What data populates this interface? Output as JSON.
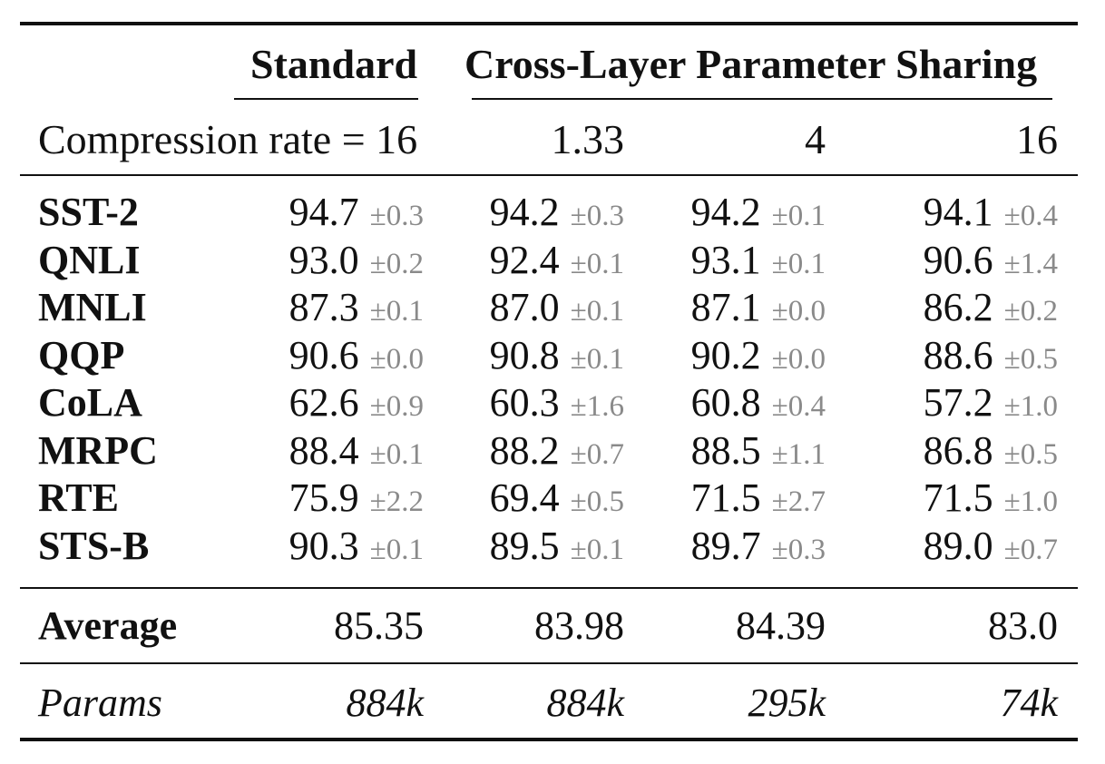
{
  "header": {
    "standard": "Standard",
    "shared": "Cross-Layer Parameter Sharing"
  },
  "compression": {
    "label": "Compression rate = 16",
    "rates": [
      "1.33",
      "4",
      "16"
    ]
  },
  "rows": [
    {
      "task": "SST-2",
      "cells": [
        [
          "94.7",
          "±0.3"
        ],
        [
          "94.2",
          "±0.3"
        ],
        [
          "94.2",
          "±0.1"
        ],
        [
          "94.1",
          "±0.4"
        ]
      ]
    },
    {
      "task": "QNLI",
      "cells": [
        [
          "93.0",
          "±0.2"
        ],
        [
          "92.4",
          "±0.1"
        ],
        [
          "93.1",
          "±0.1"
        ],
        [
          "90.6",
          "±1.4"
        ]
      ]
    },
    {
      "task": "MNLI",
      "cells": [
        [
          "87.3",
          "±0.1"
        ],
        [
          "87.0",
          "±0.1"
        ],
        [
          "87.1",
          "±0.0"
        ],
        [
          "86.2",
          "±0.2"
        ]
      ]
    },
    {
      "task": "QQP",
      "cells": [
        [
          "90.6",
          "±0.0"
        ],
        [
          "90.8",
          "±0.1"
        ],
        [
          "90.2",
          "±0.0"
        ],
        [
          "88.6",
          "±0.5"
        ]
      ]
    },
    {
      "task": "CoLA",
      "cells": [
        [
          "62.6",
          "±0.9"
        ],
        [
          "60.3",
          "±1.6"
        ],
        [
          "60.8",
          "±0.4"
        ],
        [
          "57.2",
          "±1.0"
        ]
      ]
    },
    {
      "task": "MRPC",
      "cells": [
        [
          "88.4",
          "±0.1"
        ],
        [
          "88.2",
          "±0.7"
        ],
        [
          "88.5",
          "±1.1"
        ],
        [
          "86.8",
          "±0.5"
        ]
      ]
    },
    {
      "task": "RTE",
      "cells": [
        [
          "75.9",
          "±2.2"
        ],
        [
          "69.4",
          "±0.5"
        ],
        [
          "71.5",
          "±2.7"
        ],
        [
          "71.5",
          "±1.0"
        ]
      ]
    },
    {
      "task": "STS-B",
      "cells": [
        [
          "90.3",
          "±0.1"
        ],
        [
          "89.5",
          "±0.1"
        ],
        [
          "89.7",
          "±0.3"
        ],
        [
          "89.0",
          "±0.7"
        ]
      ]
    }
  ],
  "average": {
    "label": "Average",
    "values": [
      "85.35",
      "83.98",
      "84.39",
      "83.0"
    ]
  },
  "params": {
    "label": "Params",
    "values": [
      "884k",
      "884k",
      "295k",
      "74k"
    ]
  }
}
